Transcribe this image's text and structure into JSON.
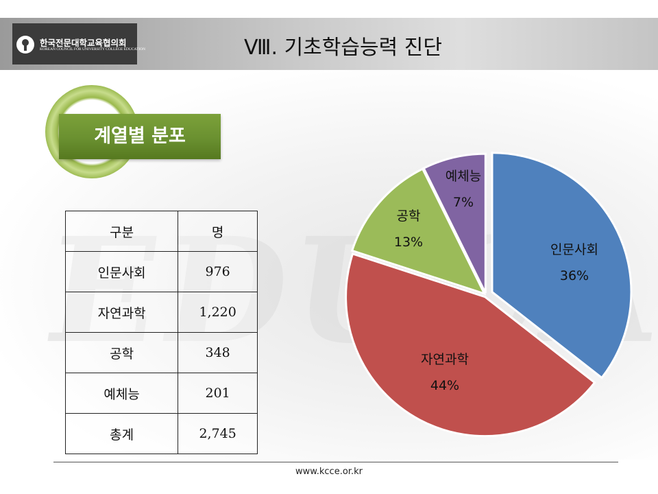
{
  "header": {
    "logo_name": "한국전문대학교육협의회",
    "logo_sub": "KOREAN COUNCIL FOR UNIVERSITY COLLEGE EDUCATION",
    "title": "Ⅷ. 기초학습능력 진단"
  },
  "background_word": "EDUCATION",
  "section_badge": {
    "title": "계열별 분포"
  },
  "table": {
    "headers": [
      "구분",
      "명"
    ],
    "rows": [
      {
        "label": "인문사회",
        "value": "976"
      },
      {
        "label": "자연과학",
        "value": "1,220"
      },
      {
        "label": "공학",
        "value": "348"
      },
      {
        "label": "예체능",
        "value": "201"
      },
      {
        "label": "총계",
        "value": "2,745"
      }
    ]
  },
  "chart_data": {
    "type": "pie",
    "categories": [
      "인문사회",
      "자연과학",
      "공학",
      "예체능"
    ],
    "values": [
      976,
      1220,
      348,
      201
    ],
    "percent_labels": [
      "36%",
      "44%",
      "13%",
      "7%"
    ],
    "colors": [
      "#4f81bd",
      "#c0504d",
      "#9bbb59",
      "#8064a2"
    ],
    "start": "12 o'clock, clockwise",
    "exploded_slice": "인문사회"
  },
  "footer": {
    "url": "www.kcce.or.kr"
  }
}
